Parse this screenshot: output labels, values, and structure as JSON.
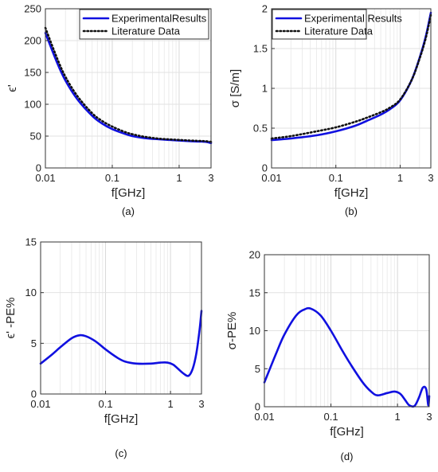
{
  "chart_data": [
    {
      "type": "line",
      "panel_label": "(a)",
      "xscale": "log",
      "xlim": [
        0.01,
        3
      ],
      "ylim": [
        0,
        250
      ],
      "xticks": [
        0.01,
        0.1,
        1,
        3
      ],
      "xtick_labels": [
        "0.01",
        "0.1",
        "1",
        "3"
      ],
      "yticks": [
        0,
        50,
        100,
        150,
        200,
        250
      ],
      "ytick_labels": [
        "0",
        "50",
        "100",
        "150",
        "200",
        "250"
      ],
      "xlabel": "f[GHz]",
      "ylabel": "ϵ'",
      "grid": true,
      "legend_position": "top-right",
      "x": [
        0.01,
        0.015,
        0.02,
        0.03,
        0.05,
        0.07,
        0.1,
        0.15,
        0.2,
        0.3,
        0.5,
        0.7,
        1,
        1.5,
        2,
        2.5,
        3
      ],
      "series": [
        {
          "name": "ExperimentalResults",
          "color": "#1010e0",
          "style": "solid",
          "values": [
            212,
            165,
            137,
            108,
            82,
            70,
            61,
            54,
            50,
            47,
            45,
            44,
            43,
            42,
            41.5,
            41,
            39
          ]
        },
        {
          "name": "Literature Data",
          "color": "#111111",
          "style": "dotted",
          "values": [
            220,
            172,
            143,
            113,
            86,
            74,
            65,
            57,
            53,
            49,
            46,
            45,
            44,
            43,
            42.5,
            42,
            41
          ]
        }
      ]
    },
    {
      "type": "line",
      "panel_label": "(b)",
      "xscale": "log",
      "xlim": [
        0.01,
        3
      ],
      "ylim": [
        0,
        2
      ],
      "xticks": [
        0.01,
        0.1,
        1,
        3
      ],
      "xtick_labels": [
        "0.01",
        "0.1",
        "1",
        "3"
      ],
      "yticks": [
        0,
        0.5,
        1,
        1.5,
        2
      ],
      "ytick_labels": [
        "0",
        "0.5",
        "1",
        "1.5",
        "2"
      ],
      "xlabel": "f[GHz]",
      "ylabel": "σ [S/m]",
      "grid": true,
      "legend_position": "top-left",
      "x": [
        0.01,
        0.02,
        0.05,
        0.1,
        0.2,
        0.3,
        0.5,
        0.7,
        1,
        1.5,
        2,
        2.5,
        3
      ],
      "series": [
        {
          "name": "Experimental Results",
          "color": "#1010e0",
          "style": "solid",
          "values": [
            0.35,
            0.37,
            0.41,
            0.46,
            0.53,
            0.59,
            0.67,
            0.74,
            0.85,
            1.1,
            1.38,
            1.65,
            1.95
          ]
        },
        {
          "name": "Literature Data",
          "color": "#111111",
          "style": "dotted",
          "values": [
            0.37,
            0.4,
            0.46,
            0.51,
            0.58,
            0.63,
            0.7,
            0.76,
            0.86,
            1.1,
            1.37,
            1.63,
            1.92
          ]
        }
      ]
    },
    {
      "type": "line",
      "panel_label": "(c)",
      "xscale": "log",
      "xlim": [
        0.01,
        3
      ],
      "ylim": [
        0,
        15
      ],
      "xticks": [
        0.01,
        0.1,
        1,
        3
      ],
      "xtick_labels": [
        "0.01",
        "0.1",
        "1",
        "3"
      ],
      "yticks": [
        0,
        5,
        10,
        15
      ],
      "ytick_labels": [
        "0",
        "5",
        "10",
        "15"
      ],
      "xlabel": "f[GHz]",
      "ylabel": "ϵ' -PE%",
      "grid": true,
      "x": [
        0.01,
        0.015,
        0.02,
        0.03,
        0.04,
        0.05,
        0.07,
        0.1,
        0.15,
        0.2,
        0.3,
        0.5,
        0.7,
        0.9,
        1.1,
        1.3,
        1.6,
        1.9,
        2.2,
        2.5,
        2.8,
        3
      ],
      "series": [
        {
          "name": "",
          "color": "#1010e0",
          "style": "solid",
          "values": [
            3.0,
            3.9,
            4.6,
            5.5,
            5.8,
            5.7,
            5.2,
            4.4,
            3.6,
            3.2,
            3.0,
            3.0,
            3.1,
            3.1,
            2.9,
            2.5,
            2.0,
            1.8,
            2.5,
            4.0,
            6.3,
            8.2
          ]
        }
      ]
    },
    {
      "type": "line",
      "panel_label": "(d)",
      "xscale": "log",
      "xlim": [
        0.01,
        3
      ],
      "ylim": [
        0,
        20
      ],
      "xticks": [
        0.01,
        0.1,
        1,
        3
      ],
      "xtick_labels": [
        "0.01",
        "0.1",
        "1",
        "3"
      ],
      "yticks": [
        0,
        5,
        10,
        15,
        20
      ],
      "ytick_labels": [
        "0",
        "5",
        "10",
        "15",
        "20"
      ],
      "xlabel": "f[GHz]",
      "ylabel": "σ-PE%",
      "grid": true,
      "x": [
        0.01,
        0.015,
        0.02,
        0.03,
        0.04,
        0.05,
        0.07,
        0.1,
        0.15,
        0.2,
        0.3,
        0.4,
        0.5,
        0.7,
        0.9,
        1.1,
        1.3,
        1.5,
        1.8,
        2.1,
        2.4,
        2.7,
        2.9,
        3
      ],
      "series": [
        {
          "name": "",
          "color": "#1010e0",
          "style": "solid",
          "values": [
            3.2,
            7.0,
            9.5,
            12.0,
            12.8,
            12.9,
            12.0,
            10.0,
            7.3,
            5.5,
            3.2,
            2.0,
            1.5,
            1.8,
            2.0,
            1.7,
            0.9,
            0.2,
            0.1,
            1.2,
            2.5,
            2.3,
            0.2,
            1.4
          ]
        }
      ]
    }
  ]
}
